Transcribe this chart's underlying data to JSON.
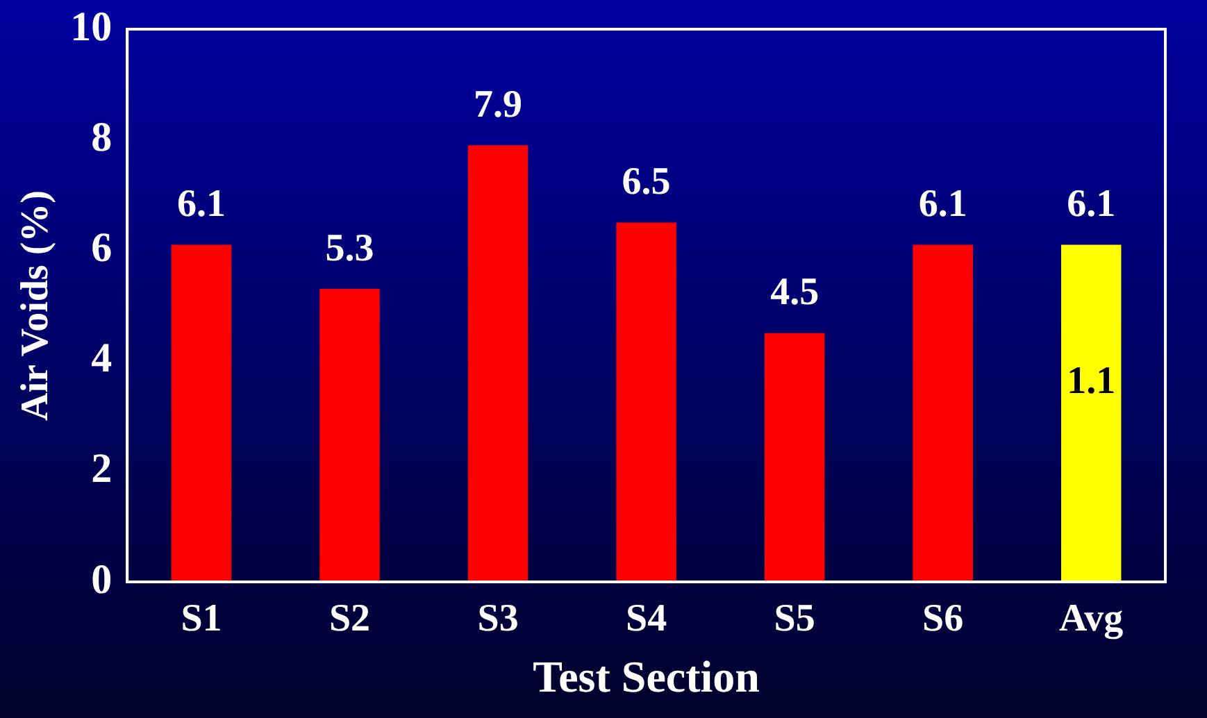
{
  "chart_data": {
    "type": "bar",
    "xlabel": "Test Section",
    "ylabel": "Air Voids (%)",
    "categories": [
      "S1",
      "S2",
      "S3",
      "S4",
      "S5",
      "S6",
      "Avg"
    ],
    "values": [
      6.1,
      5.3,
      7.9,
      6.5,
      4.5,
      6.1,
      6.1
    ],
    "colors": [
      "#ff0000",
      "#ff0000",
      "#ff0000",
      "#ff0000",
      "#ff0000",
      "#ff0000",
      "#ffff00"
    ],
    "ylim": [
      0,
      10
    ],
    "yticks": [
      0,
      2,
      4,
      6,
      8,
      10
    ],
    "grid": false,
    "legend": false,
    "data_labels": true,
    "annotations": [
      "1.1"
    ]
  }
}
